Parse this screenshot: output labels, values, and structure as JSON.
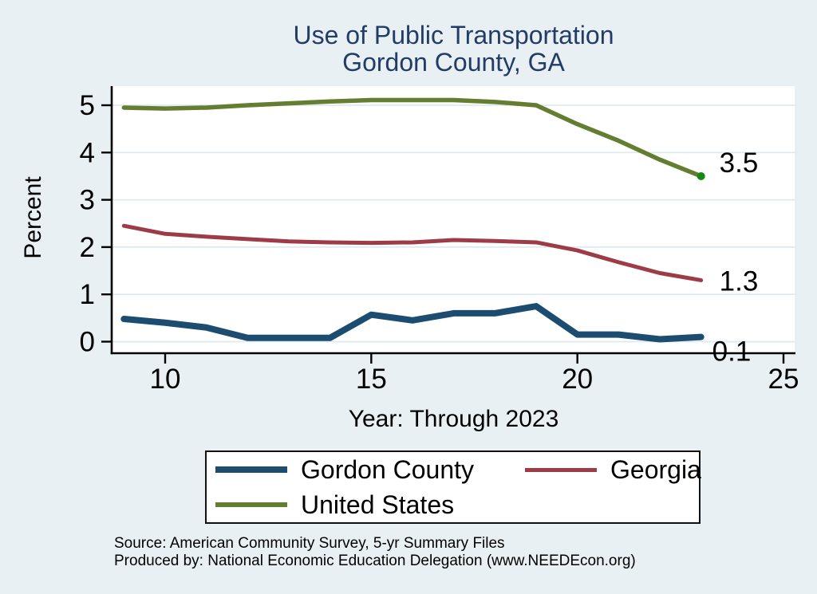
{
  "title": {
    "line1": "Use of Public Transportation",
    "line2": "Gordon County, GA"
  },
  "axes": {
    "y_label": "Percent",
    "x_label": "Year: Through 2023"
  },
  "notes": {
    "source": "Source: American Community Survey, 5-yr Summary Files",
    "produced_by": "Produced by: National Economic Education Delegation (www.NEEDEcon.org)"
  },
  "colors": {
    "background": "#e9f0f4",
    "plot_background": "#ffffff",
    "gridline": "#dfe9f0",
    "axis": "#000000",
    "title_text": "#223c66",
    "tick_text": "#000000"
  },
  "chart_data": {
    "type": "line",
    "title": "Use of Public Transportation",
    "subtitle": "Gordon County, GA",
    "xlabel": "Year: Through 2023",
    "ylabel": "Percent",
    "grid": true,
    "legend_position": "bottom",
    "x_note": "x values are years 2009-2023 shown as 9-23 on axis",
    "x": [
      9,
      10,
      11,
      12,
      13,
      14,
      15,
      16,
      17,
      18,
      19,
      20,
      21,
      22,
      23
    ],
    "x_ticks": [
      "10",
      "15",
      "20",
      "25"
    ],
    "x_tick_values": [
      10,
      15,
      20,
      25
    ],
    "y_ticks": [
      "0",
      "1",
      "2",
      "3",
      "4",
      "5"
    ],
    "y_tick_values": [
      0,
      1,
      2,
      3,
      4,
      5
    ],
    "xlim": [
      8.7,
      25.3
    ],
    "ylim": [
      -0.25,
      5.4
    ],
    "series": [
      {
        "name": "Gordon County",
        "color": "#1c4d70",
        "line_width": 8,
        "end_label": "0.1",
        "values": [
          0.48,
          0.4,
          0.3,
          0.08,
          0.08,
          0.08,
          0.57,
          0.45,
          0.6,
          0.6,
          0.75,
          0.15,
          0.15,
          0.05,
          0.1
        ]
      },
      {
        "name": "Georgia",
        "color": "#9d3c46",
        "line_width": 5,
        "end_label": "1.3",
        "values": [
          2.45,
          2.28,
          2.22,
          2.17,
          2.12,
          2.1,
          2.09,
          2.1,
          2.15,
          2.13,
          2.1,
          1.93,
          1.68,
          1.45,
          1.3
        ]
      },
      {
        "name": "United States",
        "color": "#647d31",
        "line_width": 5.5,
        "end_label": "3.5",
        "end_dot_color": "#128a12",
        "values": [
          4.95,
          4.93,
          4.95,
          5.0,
          5.04,
          5.08,
          5.11,
          5.11,
          5.11,
          5.07,
          5.0,
          4.6,
          4.25,
          3.85,
          3.5
        ]
      }
    ]
  }
}
